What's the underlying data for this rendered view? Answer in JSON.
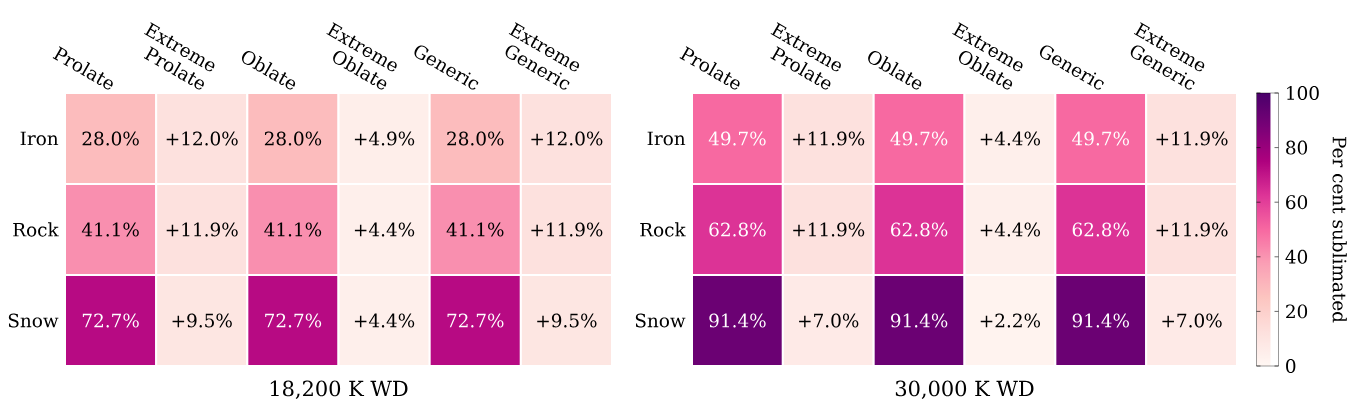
{
  "chart_data": [
    {
      "type": "heatmap",
      "categories": [
        "Prolate",
        "Extreme Prolate",
        "Oblate",
        "Extreme Oblate",
        "Generic",
        "Extreme Generic"
      ],
      "y_categories": [
        "Iron",
        "Rock",
        "Snow"
      ],
      "cells": [
        [
          28.0,
          12.0,
          28.0,
          4.9,
          28.0,
          12.0
        ],
        [
          41.1,
          11.9,
          41.1,
          4.4,
          41.1,
          11.9
        ],
        [
          72.7,
          9.5,
          72.7,
          4.4,
          72.7,
          9.5
        ]
      ],
      "cell_labels": [
        [
          "28.0%",
          "+12.0%",
          "28.0%",
          "+4.9%",
          "28.0%",
          "+12.0%"
        ],
        [
          "41.1%",
          "+11.9%",
          "41.1%",
          "+4.4%",
          "41.1%",
          "+11.9%"
        ],
        [
          "72.7%",
          "+9.5%",
          "72.7%",
          "+4.4%",
          "72.7%",
          "+9.5%"
        ]
      ],
      "xlabel": "18,200 K WD"
    },
    {
      "type": "heatmap",
      "categories": [
        "Prolate",
        "Extreme Prolate",
        "Oblate",
        "Extreme Oblate",
        "Generic",
        "Extreme Generic"
      ],
      "y_categories": [
        "Iron",
        "Rock",
        "Snow"
      ],
      "cells": [
        [
          49.7,
          11.9,
          49.7,
          4.4,
          49.7,
          11.9
        ],
        [
          62.8,
          11.9,
          62.8,
          4.4,
          62.8,
          11.9
        ],
        [
          91.4,
          7.0,
          91.4,
          2.2,
          91.4,
          7.0
        ]
      ],
      "cell_labels": [
        [
          "49.7%",
          "+11.9%",
          "49.7%",
          "+4.4%",
          "49.7%",
          "+11.9%"
        ],
        [
          "62.8%",
          "+11.9%",
          "62.8%",
          "+4.4%",
          "62.8%",
          "+11.9%"
        ],
        [
          "91.4%",
          "+7.0%",
          "91.4%",
          "+2.2%",
          "91.4%",
          "+7.0%"
        ]
      ],
      "clim": [
        0,
        100
      ],
      "cticks": [
        0,
        20,
        40,
        60,
        80,
        100
      ],
      "clabel": "Per cent sublimated",
      "xlabel": "30,000 K WD"
    }
  ]
}
